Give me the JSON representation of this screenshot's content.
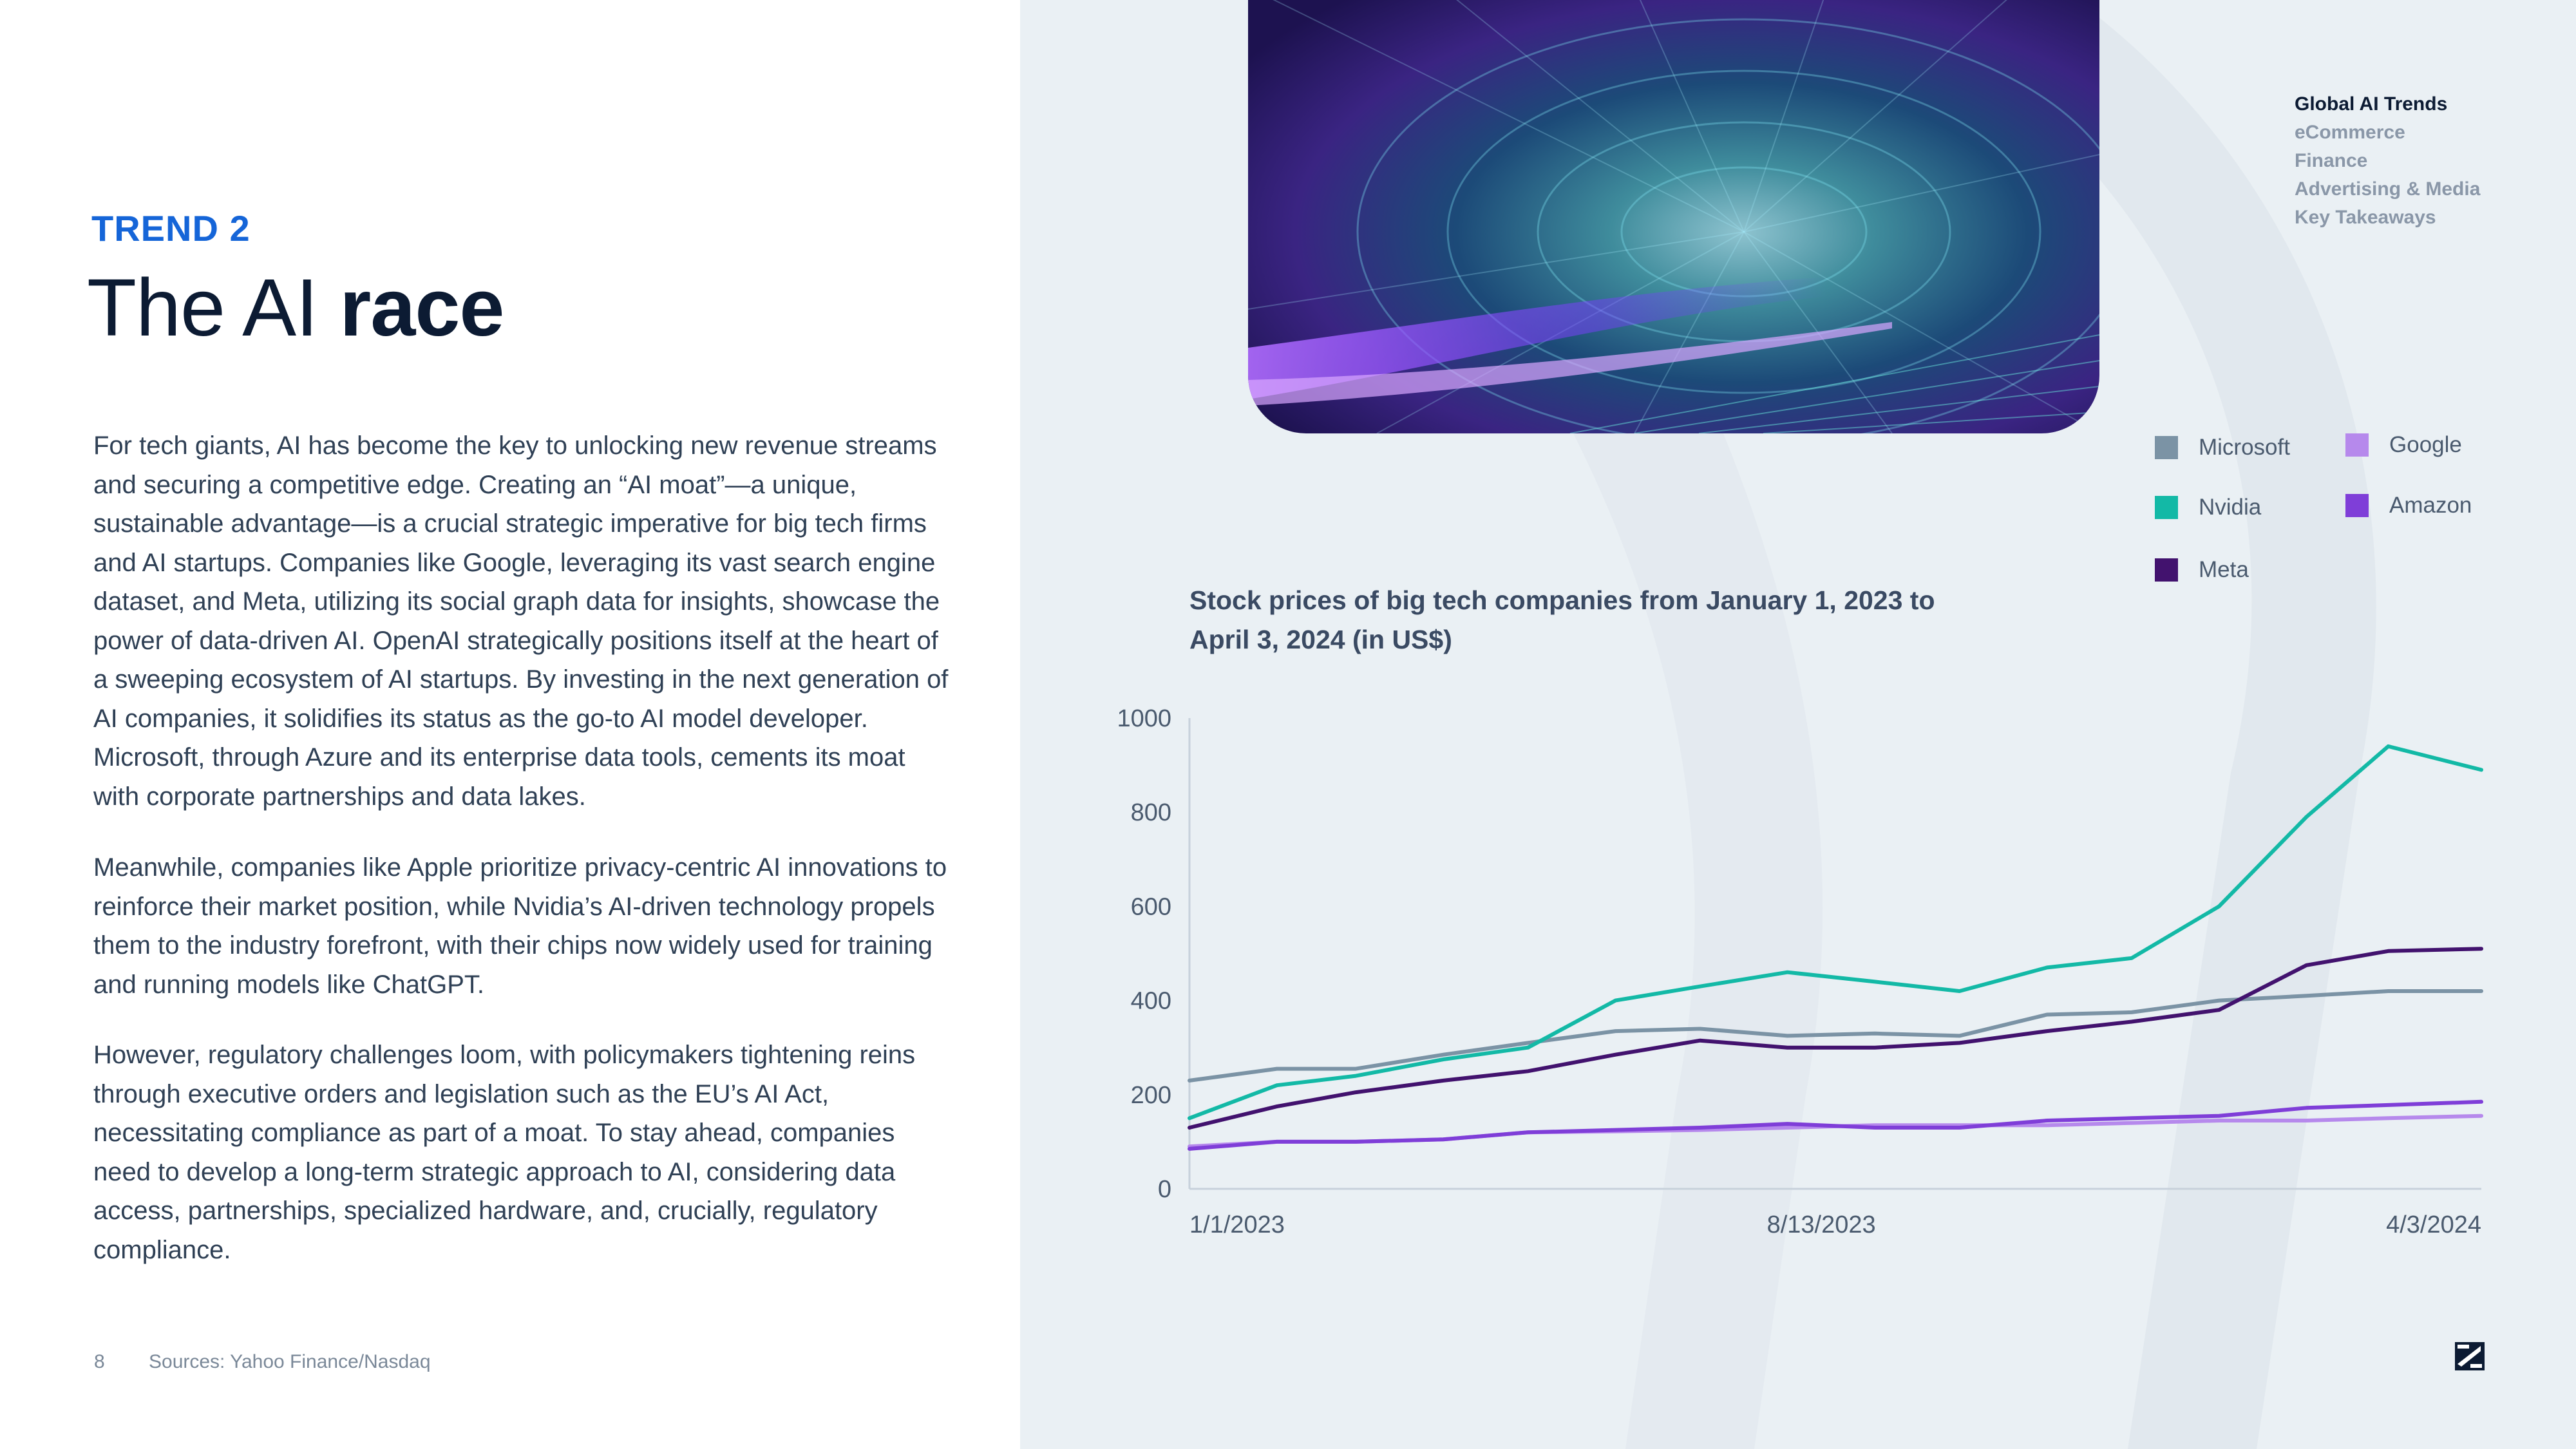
{
  "left": {
    "trend_label": "TREND 2",
    "title_light": "The AI ",
    "title_bold": "race",
    "paragraphs": [
      "For tech giants, AI has become the key to unlocking new revenue streams and securing a competitive edge. Creating an “AI moat”—a unique, sustainable advantage—is a crucial strategic imperative for big tech firms and AI startups. Companies like Google, leveraging its vast search engine dataset, and Meta, utilizing its social graph data for insights, showcase the power of data-driven AI. OpenAI strategically positions itself at the heart of a sweeping ecosystem of AI startups. By investing in the next generation of AI companies, it solidifies its status as the go-to AI model developer. Microsoft, through Azure and its enterprise data tools, cements its moat with corporate partnerships and data lakes.",
      "Meanwhile, companies like Apple prioritize privacy-centric AI innovations to reinforce their market position, while Nvidia’s AI-driven technology propels them to the industry forefront, with their chips now widely used for training and running models like ChatGPT.",
      "However, regulatory challenges loom, with policymakers tightening reins through executive orders and legislation such as the EU’s AI Act, necessitating compliance as part of a moat. To stay ahead, companies need to develop a long-term strategic approach to AI, considering data access, partnerships, specialized hardware, and, crucially, regulatory compliance."
    ]
  },
  "footer": {
    "page_number": "8",
    "sources": "Sources: Yahoo Finance/Nasdaq"
  },
  "nav": {
    "items": [
      "Global AI Trends",
      "eCommerce",
      "Finance",
      "Advertising & Media",
      "Key Takeaways"
    ],
    "active_index": 0
  },
  "colors": {
    "Microsoft": "#7b93a5",
    "Nvidia": "#13b9a6",
    "Meta": "#42126e",
    "Google": "#b689ec",
    "Amazon": "#7f3ed8",
    "accent": "#1565d8"
  },
  "icons": [
    "hero-image",
    "brand-logo-icon"
  ],
  "chart_data": {
    "type": "line",
    "title": "Stock prices of big tech companies from January 1, 2023 to April 3, 2024 (in US$)",
    "xlabel": "",
    "ylabel": "",
    "ylim": [
      0,
      1000
    ],
    "yticks": [
      0,
      200,
      400,
      600,
      800,
      1000
    ],
    "x_tick_labels": [
      "1/1/2023",
      "8/13/2023",
      "4/3/2024"
    ],
    "x_range": [
      "2023-01-01",
      "2024-04-03"
    ],
    "x_ticks": [
      "2023-01-01",
      "2023-08-13",
      "2024-04-03"
    ],
    "grid": false,
    "legend": "top-right",
    "series": [
      {
        "name": "Microsoft",
        "values": [
          {
            "x": "2023-01-01",
            "y": 230
          },
          {
            "x": "2023-02-01",
            "y": 255
          },
          {
            "x": "2023-03-01",
            "y": 255
          },
          {
            "x": "2023-04-01",
            "y": 285
          },
          {
            "x": "2023-05-01",
            "y": 310
          },
          {
            "x": "2023-06-01",
            "y": 335
          },
          {
            "x": "2023-07-01",
            "y": 340
          },
          {
            "x": "2023-08-01",
            "y": 325
          },
          {
            "x": "2023-09-01",
            "y": 330
          },
          {
            "x": "2023-10-01",
            "y": 325
          },
          {
            "x": "2023-11-01",
            "y": 370
          },
          {
            "x": "2023-12-01",
            "y": 375
          },
          {
            "x": "2024-01-01",
            "y": 400
          },
          {
            "x": "2024-02-01",
            "y": 410
          },
          {
            "x": "2024-03-01",
            "y": 420
          },
          {
            "x": "2024-04-03",
            "y": 420
          }
        ]
      },
      {
        "name": "Nvidia",
        "values": [
          {
            "x": "2023-01-01",
            "y": 150
          },
          {
            "x": "2023-02-01",
            "y": 220
          },
          {
            "x": "2023-03-01",
            "y": 240
          },
          {
            "x": "2023-04-01",
            "y": 275
          },
          {
            "x": "2023-05-01",
            "y": 300
          },
          {
            "x": "2023-06-01",
            "y": 400
          },
          {
            "x": "2023-07-01",
            "y": 430
          },
          {
            "x": "2023-08-01",
            "y": 460
          },
          {
            "x": "2023-09-01",
            "y": 440
          },
          {
            "x": "2023-10-01",
            "y": 420
          },
          {
            "x": "2023-11-01",
            "y": 470
          },
          {
            "x": "2023-12-01",
            "y": 490
          },
          {
            "x": "2024-01-01",
            "y": 600
          },
          {
            "x": "2024-02-01",
            "y": 790
          },
          {
            "x": "2024-03-01",
            "y": 940
          },
          {
            "x": "2024-04-03",
            "y": 890
          }
        ]
      },
      {
        "name": "Meta",
        "values": [
          {
            "x": "2023-01-01",
            "y": 130
          },
          {
            "x": "2023-02-01",
            "y": 175
          },
          {
            "x": "2023-03-01",
            "y": 205
          },
          {
            "x": "2023-04-01",
            "y": 230
          },
          {
            "x": "2023-05-01",
            "y": 250
          },
          {
            "x": "2023-06-01",
            "y": 285
          },
          {
            "x": "2023-07-01",
            "y": 315
          },
          {
            "x": "2023-08-01",
            "y": 300
          },
          {
            "x": "2023-09-01",
            "y": 300
          },
          {
            "x": "2023-10-01",
            "y": 310
          },
          {
            "x": "2023-11-01",
            "y": 335
          },
          {
            "x": "2023-12-01",
            "y": 355
          },
          {
            "x": "2024-01-01",
            "y": 380
          },
          {
            "x": "2024-02-01",
            "y": 475
          },
          {
            "x": "2024-03-01",
            "y": 505
          },
          {
            "x": "2024-04-03",
            "y": 510
          }
        ]
      },
      {
        "name": "Google",
        "values": [
          {
            "x": "2023-01-01",
            "y": 90
          },
          {
            "x": "2023-02-01",
            "y": 100
          },
          {
            "x": "2023-03-01",
            "y": 100
          },
          {
            "x": "2023-04-01",
            "y": 105
          },
          {
            "x": "2023-05-01",
            "y": 120
          },
          {
            "x": "2023-06-01",
            "y": 122
          },
          {
            "x": "2023-07-01",
            "y": 125
          },
          {
            "x": "2023-08-01",
            "y": 130
          },
          {
            "x": "2023-09-01",
            "y": 135
          },
          {
            "x": "2023-10-01",
            "y": 135
          },
          {
            "x": "2023-11-01",
            "y": 135
          },
          {
            "x": "2023-12-01",
            "y": 140
          },
          {
            "x": "2024-01-01",
            "y": 145
          },
          {
            "x": "2024-02-01",
            "y": 145
          },
          {
            "x": "2024-03-01",
            "y": 150
          },
          {
            "x": "2024-04-03",
            "y": 155
          }
        ]
      },
      {
        "name": "Amazon",
        "values": [
          {
            "x": "2023-01-01",
            "y": 85
          },
          {
            "x": "2023-02-01",
            "y": 100
          },
          {
            "x": "2023-03-01",
            "y": 100
          },
          {
            "x": "2023-04-01",
            "y": 105
          },
          {
            "x": "2023-05-01",
            "y": 120
          },
          {
            "x": "2023-06-01",
            "y": 125
          },
          {
            "x": "2023-07-01",
            "y": 130
          },
          {
            "x": "2023-08-01",
            "y": 138
          },
          {
            "x": "2023-09-01",
            "y": 130
          },
          {
            "x": "2023-10-01",
            "y": 130
          },
          {
            "x": "2023-11-01",
            "y": 145
          },
          {
            "x": "2023-12-01",
            "y": 150
          },
          {
            "x": "2024-01-01",
            "y": 155
          },
          {
            "x": "2024-02-01",
            "y": 172
          },
          {
            "x": "2024-03-01",
            "y": 178
          },
          {
            "x": "2024-04-03",
            "y": 185
          }
        ]
      }
    ]
  }
}
